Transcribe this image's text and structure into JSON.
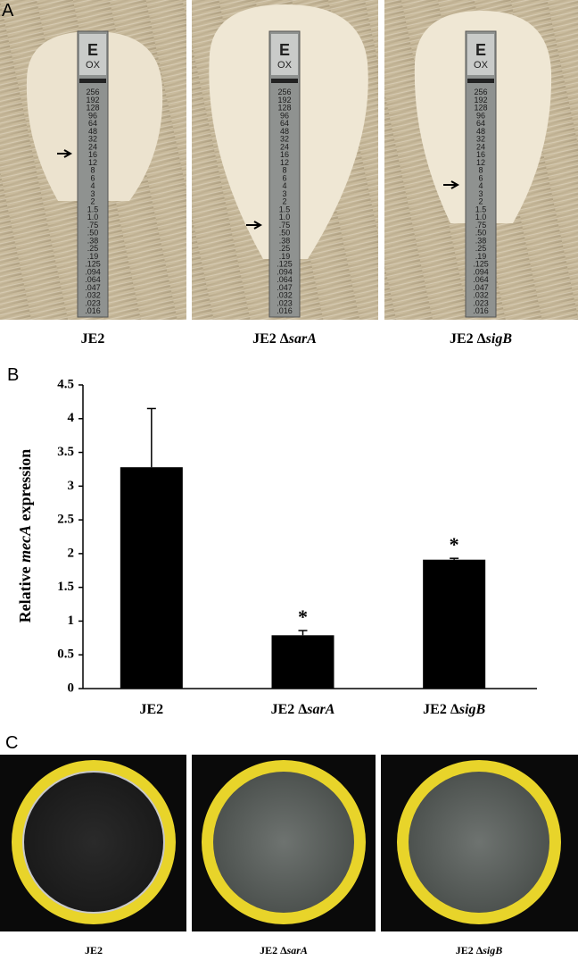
{
  "panels": {
    "a": {
      "letter": "A",
      "labels": [
        [
          "JE2"
        ],
        [
          "JE2 Δ",
          "sarA"
        ],
        [
          "JE2 Δ",
          "sigB"
        ]
      ],
      "strip_logo": "E",
      "strip_drug": "OX",
      "strip_scale": [
        "256",
        "192",
        "128",
        "96",
        "64",
        "48",
        "32",
        "24",
        "16",
        "12",
        "8",
        "6",
        "4",
        "3",
        "2",
        "1.5",
        "1.0",
        ".75",
        ".50",
        ".38",
        ".25",
        ".19",
        ".125",
        ".094",
        ".064",
        ".047",
        ".032",
        ".023",
        ".016"
      ]
    },
    "b": {
      "letter": "B"
    },
    "c": {
      "letter": "C",
      "labels": [
        [
          "JE2"
        ],
        [
          "JE2 Δ",
          "sarA"
        ],
        [
          "JE2 Δ",
          "sigB"
        ]
      ]
    }
  },
  "chart_data": {
    "type": "bar",
    "y_label": [
      "Relative ",
      "mecA",
      " expression"
    ],
    "categories": [
      [
        "JE2"
      ],
      [
        "JE2 Δ",
        "sarA"
      ],
      [
        "JE2 Δ",
        "sigB"
      ]
    ],
    "values": [
      3.28,
      0.79,
      1.91
    ],
    "errors": [
      0.87,
      0.07,
      0.02
    ],
    "annotations": [
      null,
      "*",
      "*"
    ],
    "color": "#000000",
    "ylim": [
      0,
      4.5
    ],
    "yticks": [
      0,
      0.5,
      1,
      1.5,
      2,
      2.5,
      3,
      3.5,
      4,
      4.5
    ]
  }
}
